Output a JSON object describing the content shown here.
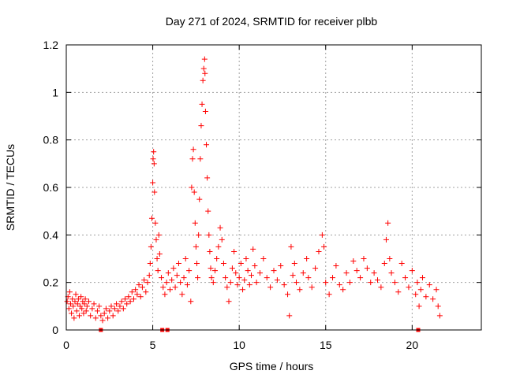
{
  "chart_data": {
    "type": "scatter",
    "title": "Day 271 of 2024, SRMTID for receiver plbb",
    "xlabel": "GPS time / hours",
    "ylabel": "SRMTID / TECUs",
    "xlim": [
      0,
      24
    ],
    "ylim": [
      0,
      1.2
    ],
    "x_ticks": [
      0,
      5,
      10,
      15,
      20
    ],
    "x_tick_labels": [
      "0",
      "5",
      "10",
      "15",
      "20"
    ],
    "y_ticks": [
      0,
      0.2,
      0.4,
      0.6,
      0.8,
      1.0,
      1.2
    ],
    "y_tick_labels": [
      "0",
      "0.2",
      "0.4",
      "0.6",
      "0.8",
      "1",
      "1.2"
    ],
    "grid": true,
    "marker": "plus",
    "color": "#ff0000",
    "series": [
      {
        "name": "SRMTID",
        "points": [
          [
            0.05,
            0.12
          ],
          [
            0.1,
            0.14
          ],
          [
            0.15,
            0.09
          ],
          [
            0.2,
            0.16
          ],
          [
            0.25,
            0.11
          ],
          [
            0.3,
            0.07
          ],
          [
            0.35,
            0.13
          ],
          [
            0.4,
            0.1
          ],
          [
            0.45,
            0.05
          ],
          [
            0.5,
            0.12
          ],
          [
            0.55,
            0.15
          ],
          [
            0.6,
            0.08
          ],
          [
            0.65,
            0.11
          ],
          [
            0.7,
            0.13
          ],
          [
            0.75,
            0.06
          ],
          [
            0.8,
            0.1
          ],
          [
            0.85,
            0.14
          ],
          [
            0.9,
            0.09
          ],
          [
            0.95,
            0.12
          ],
          [
            1.0,
            0.07
          ],
          [
            1.05,
            0.11
          ],
          [
            1.1,
            0.13
          ],
          [
            1.15,
            0.08
          ],
          [
            1.2,
            0.1
          ],
          [
            1.3,
            0.12
          ],
          [
            1.4,
            0.06
          ],
          [
            1.5,
            0.09
          ],
          [
            1.6,
            0.11
          ],
          [
            1.7,
            0.05
          ],
          [
            1.8,
            0.08
          ],
          [
            1.9,
            0.1
          ],
          [
            2.0,
            0.06
          ],
          [
            2.1,
            0.04
          ],
          [
            2.2,
            0.07
          ],
          [
            2.3,
            0.09
          ],
          [
            2.4,
            0.05
          ],
          [
            2.5,
            0.08
          ],
          [
            2.6,
            0.1
          ],
          [
            2.7,
            0.06
          ],
          [
            2.8,
            0.09
          ],
          [
            2.9,
            0.11
          ],
          [
            3.0,
            0.08
          ],
          [
            3.1,
            0.1
          ],
          [
            3.2,
            0.12
          ],
          [
            3.3,
            0.09
          ],
          [
            3.4,
            0.13
          ],
          [
            3.5,
            0.11
          ],
          [
            3.6,
            0.14
          ],
          [
            3.7,
            0.12
          ],
          [
            3.8,
            0.16
          ],
          [
            3.9,
            0.13
          ],
          [
            4.0,
            0.17
          ],
          [
            4.1,
            0.15
          ],
          [
            4.2,
            0.19
          ],
          [
            4.3,
            0.14
          ],
          [
            4.4,
            0.18
          ],
          [
            4.5,
            0.21
          ],
          [
            4.6,
            0.16
          ],
          [
            4.7,
            0.2
          ],
          [
            4.8,
            0.23
          ],
          [
            4.85,
            0.28
          ],
          [
            4.9,
            0.35
          ],
          [
            4.95,
            0.47
          ],
          [
            5.0,
            0.62
          ],
          [
            5.02,
            0.72
          ],
          [
            5.05,
            0.75
          ],
          [
            5.08,
            0.7
          ],
          [
            5.1,
            0.58
          ],
          [
            5.15,
            0.45
          ],
          [
            5.2,
            0.38
          ],
          [
            5.25,
            0.3
          ],
          [
            5.3,
            0.25
          ],
          [
            5.35,
            0.4
          ],
          [
            5.4,
            0.32
          ],
          [
            5.5,
            0.22
          ],
          [
            5.6,
            0.18
          ],
          [
            5.7,
            0.15
          ],
          [
            5.8,
            0.2
          ],
          [
            5.9,
            0.24
          ],
          [
            6.0,
            0.17
          ],
          [
            6.1,
            0.21
          ],
          [
            6.2,
            0.26
          ],
          [
            6.3,
            0.18
          ],
          [
            6.4,
            0.23
          ],
          [
            6.5,
            0.28
          ],
          [
            6.6,
            0.2
          ],
          [
            6.7,
            0.15
          ],
          [
            6.8,
            0.22
          ],
          [
            6.9,
            0.3
          ],
          [
            7.0,
            0.19
          ],
          [
            7.1,
            0.25
          ],
          [
            7.2,
            0.12
          ],
          [
            7.25,
            0.6
          ],
          [
            7.3,
            0.72
          ],
          [
            7.35,
            0.76
          ],
          [
            7.4,
            0.58
          ],
          [
            7.45,
            0.45
          ],
          [
            7.5,
            0.35
          ],
          [
            7.55,
            0.28
          ],
          [
            7.6,
            0.22
          ],
          [
            7.65,
            0.4
          ],
          [
            7.7,
            0.55
          ],
          [
            7.75,
            0.72
          ],
          [
            7.8,
            0.86
          ],
          [
            7.85,
            0.95
          ],
          [
            7.9,
            1.05
          ],
          [
            7.95,
            1.1
          ],
          [
            8.0,
            1.14
          ],
          [
            8.02,
            1.08
          ],
          [
            8.05,
            0.92
          ],
          [
            8.1,
            0.78
          ],
          [
            8.15,
            0.64
          ],
          [
            8.2,
            0.5
          ],
          [
            8.25,
            0.4
          ],
          [
            8.3,
            0.33
          ],
          [
            8.35,
            0.26
          ],
          [
            8.4,
            0.22
          ],
          [
            8.5,
            0.2
          ],
          [
            8.6,
            0.25
          ],
          [
            8.7,
            0.3
          ],
          [
            8.8,
            0.35
          ],
          [
            8.9,
            0.43
          ],
          [
            9.0,
            0.38
          ],
          [
            9.1,
            0.28
          ],
          [
            9.2,
            0.22
          ],
          [
            9.3,
            0.18
          ],
          [
            9.4,
            0.12
          ],
          [
            9.5,
            0.2
          ],
          [
            9.6,
            0.26
          ],
          [
            9.7,
            0.33
          ],
          [
            9.8,
            0.24
          ],
          [
            9.9,
            0.19
          ],
          [
            10.0,
            0.22
          ],
          [
            10.1,
            0.28
          ],
          [
            10.2,
            0.17
          ],
          [
            10.3,
            0.21
          ],
          [
            10.4,
            0.3
          ],
          [
            10.5,
            0.25
          ],
          [
            10.6,
            0.19
          ],
          [
            10.7,
            0.23
          ],
          [
            10.8,
            0.34
          ],
          [
            10.9,
            0.27
          ],
          [
            11.0,
            0.2
          ],
          [
            11.2,
            0.24
          ],
          [
            11.4,
            0.3
          ],
          [
            11.6,
            0.22
          ],
          [
            11.8,
            0.18
          ],
          [
            12.0,
            0.25
          ],
          [
            12.2,
            0.21
          ],
          [
            12.4,
            0.27
          ],
          [
            12.6,
            0.19
          ],
          [
            12.8,
            0.15
          ],
          [
            12.9,
            0.06
          ],
          [
            13.0,
            0.35
          ],
          [
            13.1,
            0.23
          ],
          [
            13.2,
            0.28
          ],
          [
            13.3,
            0.2
          ],
          [
            13.5,
            0.17
          ],
          [
            13.7,
            0.24
          ],
          [
            13.9,
            0.3
          ],
          [
            14.0,
            0.22
          ],
          [
            14.2,
            0.18
          ],
          [
            14.4,
            0.26
          ],
          [
            14.6,
            0.33
          ],
          [
            14.8,
            0.4
          ],
          [
            14.9,
            0.35
          ],
          [
            15.0,
            0.2
          ],
          [
            15.2,
            0.15
          ],
          [
            15.4,
            0.22
          ],
          [
            15.6,
            0.27
          ],
          [
            15.8,
            0.19
          ],
          [
            16.0,
            0.17
          ],
          [
            16.2,
            0.24
          ],
          [
            16.4,
            0.2
          ],
          [
            16.6,
            0.29
          ],
          [
            16.8,
            0.25
          ],
          [
            17.0,
            0.22
          ],
          [
            17.2,
            0.3
          ],
          [
            17.4,
            0.26
          ],
          [
            17.6,
            0.2
          ],
          [
            17.8,
            0.24
          ],
          [
            18.0,
            0.21
          ],
          [
            18.2,
            0.18
          ],
          [
            18.4,
            0.28
          ],
          [
            18.5,
            0.38
          ],
          [
            18.6,
            0.45
          ],
          [
            18.7,
            0.3
          ],
          [
            18.8,
            0.24
          ],
          [
            19.0,
            0.2
          ],
          [
            19.2,
            0.16
          ],
          [
            19.4,
            0.28
          ],
          [
            19.6,
            0.22
          ],
          [
            19.8,
            0.18
          ],
          [
            20.0,
            0.25
          ],
          [
            20.2,
            0.15
          ],
          [
            20.3,
            0.2
          ],
          [
            20.4,
            0.1
          ],
          [
            20.5,
            0.17
          ],
          [
            20.6,
            0.22
          ],
          [
            20.8,
            0.14
          ],
          [
            21.0,
            0.19
          ],
          [
            21.2,
            0.13
          ],
          [
            21.4,
            0.17
          ],
          [
            21.5,
            0.1
          ],
          [
            21.6,
            0.06
          ]
        ]
      }
    ],
    "markers_on_axis": [
      2.0,
      5.55,
      5.85,
      20.35
    ]
  }
}
